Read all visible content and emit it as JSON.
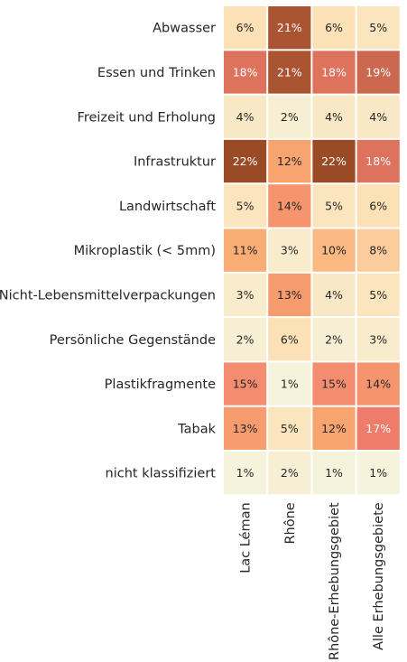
{
  "chart_data": {
    "type": "heatmap",
    "rows": [
      "Abwasser",
      "Essen und Trinken",
      "Freizeit und Erholung",
      "Infrastruktur",
      "Landwirtschaft",
      "Mikroplastik (< 5mm)",
      "Nicht-Lebensmittelverpackungen",
      "Persönliche Gegenstände",
      "Plastikfragmente",
      "Tabak",
      "nicht klassifiziert"
    ],
    "columns": [
      "Lac Léman",
      "Rhône",
      "Rhône-Erhebungsgebiet",
      "Alle Erhebungsgebiete"
    ],
    "values": [
      [
        6,
        21,
        6,
        5
      ],
      [
        18,
        21,
        18,
        19
      ],
      [
        4,
        2,
        4,
        4
      ],
      [
        22,
        12,
        22,
        18
      ],
      [
        5,
        14,
        5,
        6
      ],
      [
        11,
        3,
        10,
        8
      ],
      [
        3,
        13,
        4,
        5
      ],
      [
        2,
        6,
        2,
        3
      ],
      [
        15,
        1,
        15,
        14
      ],
      [
        13,
        5,
        12,
        17
      ],
      [
        1,
        2,
        1,
        1
      ]
    ],
    "value_format": "percent",
    "colorscale": [
      "#f5f3dc",
      "#fce0b4",
      "#f9a86e",
      "#f27f6f",
      "#9a4a24"
    ],
    "colorbar": false,
    "grid": false
  }
}
